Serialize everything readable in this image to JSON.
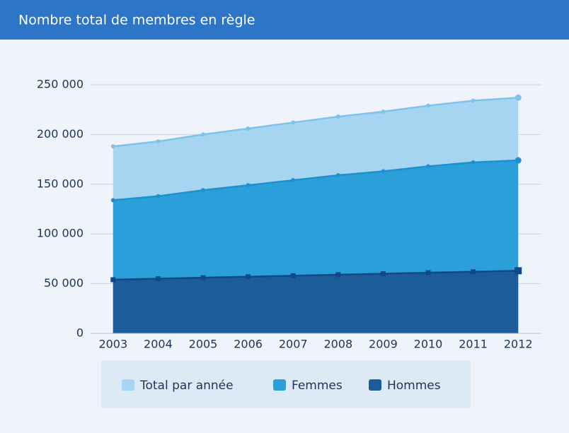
{
  "chart_data": {
    "type": "area",
    "title": "Nombre total de membres en règle",
    "categories": [
      "2003",
      "2004",
      "2005",
      "2006",
      "2007",
      "2008",
      "2009",
      "2010",
      "2011",
      "2012"
    ],
    "series": [
      {
        "name": "Total par année",
        "color": "#a6d5f1",
        "line_color": "#7fc3ea",
        "values": [
          188000,
          193000,
          200000,
          206000,
          212000,
          218000,
          223000,
          229000,
          234000,
          237000
        ]
      },
      {
        "name": "Femmes",
        "color": "#2b9fda",
        "line_color": "#1f8fd0",
        "values": [
          134000,
          138000,
          144000,
          149000,
          154000,
          159000,
          163000,
          168000,
          172000,
          174000
        ]
      },
      {
        "name": "Hommes",
        "color": "#1b5c99",
        "line_color": "#0f4a86",
        "values": [
          54000,
          55000,
          56000,
          57000,
          58000,
          59000,
          60000,
          61000,
          62000,
          63000
        ]
      }
    ],
    "ylim": [
      0,
      250000
    ],
    "yticks": [
      0,
      {
        "value": 50000,
        "label": "50 000"
      },
      {
        "value": 100000,
        "label": "100 000"
      },
      {
        "value": 150000,
        "label": "150 000"
      },
      {
        "value": 200000,
        "label": "200 000"
      },
      {
        "value": 250000,
        "label": "250 000"
      }
    ],
    "grid": true
  }
}
